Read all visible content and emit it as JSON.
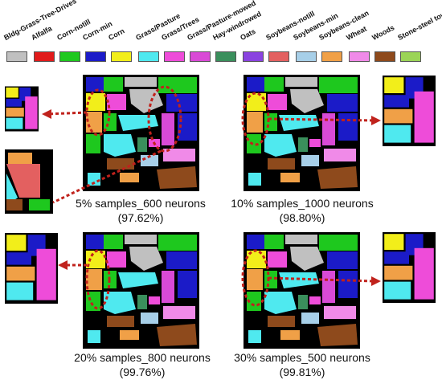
{
  "legend": {
    "items": [
      {
        "label": "Bldg-Grass-Tree-Drives",
        "color": "#c0c0c0"
      },
      {
        "label": "Alfalfa",
        "color": "#e11b1b"
      },
      {
        "label": "Corn-notill",
        "color": "#1ec81e"
      },
      {
        "label": "Corn-min",
        "color": "#1b1bc8"
      },
      {
        "label": "Corn",
        "color": "#f2ee1a"
      },
      {
        "label": "Grass/Pasture",
        "color": "#4fe9ef"
      },
      {
        "label": "Grass/Trees",
        "color": "#ee4cd9"
      },
      {
        "label": "Grass/Pasture-mowed",
        "color": "#d94ad6"
      },
      {
        "label": "Hay-windrowed",
        "color": "#3a8f5c"
      },
      {
        "label": "Oats",
        "color": "#8a43e0"
      },
      {
        "label": "Soybeans-notill",
        "color": "#e36060"
      },
      {
        "label": "Soybeans-min",
        "color": "#a7cfe8"
      },
      {
        "label": "Soybeans-clean",
        "color": "#f0a047"
      },
      {
        "label": "Wheat",
        "color": "#f08ae8"
      },
      {
        "label": "Woods",
        "color": "#8e4a1c"
      },
      {
        "label": "Stone-steel towers",
        "color": "#9bd457"
      }
    ]
  },
  "panels": [
    {
      "caption_line1": "5% samples_600 neurons",
      "caption_line2": "(97.62%)"
    },
    {
      "caption_line1": "10% samples_1000 neurons",
      "caption_line2": "(98.80%)"
    },
    {
      "caption_line1": "20% samples_800 neurons",
      "caption_line2": "(99.76%)"
    },
    {
      "caption_line1": "30% samples_500 neurons",
      "caption_line2": "(99.81%)"
    }
  ],
  "colors": {
    "background": "#000000",
    "arrow": "#c0221c"
  }
}
